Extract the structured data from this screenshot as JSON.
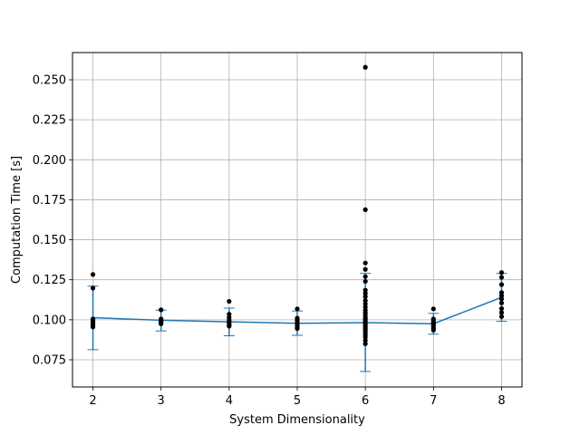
{
  "chart_data": {
    "type": "line",
    "xlabel": "System Dimensionality",
    "ylabel": "Computation Time [s]",
    "xlim": [
      1.7,
      8.3
    ],
    "ylim": [
      0.058,
      0.267
    ],
    "grid": true,
    "x_ticks": [
      "2",
      "3",
      "4",
      "5",
      "6",
      "7",
      "8"
    ],
    "y_ticks": [
      "0.075",
      "0.100",
      "0.125",
      "0.150",
      "0.175",
      "0.200",
      "0.225",
      "0.250"
    ],
    "line_color": "#1f77b4",
    "point_color": "#000000",
    "mean_series": {
      "x": [
        2,
        3,
        4,
        5,
        6,
        7,
        8
      ],
      "y": [
        0.1013,
        0.0997,
        0.0987,
        0.0978,
        0.0982,
        0.0975,
        0.114
      ]
    },
    "error_bars": [
      {
        "x": 2,
        "low": 0.0813,
        "high": 0.121
      },
      {
        "x": 3,
        "low": 0.093,
        "high": 0.106
      },
      {
        "x": 4,
        "low": 0.09,
        "high": 0.1073
      },
      {
        "x": 5,
        "low": 0.0903,
        "high": 0.1055
      },
      {
        "x": 6,
        "low": 0.0677,
        "high": 0.129
      },
      {
        "x": 7,
        "low": 0.091,
        "high": 0.104
      },
      {
        "x": 8,
        "low": 0.099,
        "high": 0.129
      }
    ],
    "samples": [
      {
        "x": 2,
        "y": [
          0.1283,
          0.1198,
          0.1005,
          0.0995,
          0.0985,
          0.0978,
          0.097,
          0.0962,
          0.0955
        ]
      },
      {
        "x": 3,
        "y": [
          0.1062,
          0.1005,
          0.0998,
          0.099,
          0.0982,
          0.0975
        ]
      },
      {
        "x": 4,
        "y": [
          0.1115,
          0.1035,
          0.1015,
          0.0998,
          0.0988,
          0.0978,
          0.0968,
          0.096
        ]
      },
      {
        "x": 5,
        "y": [
          0.1068,
          0.101,
          0.0998,
          0.0985,
          0.0975,
          0.0962,
          0.0952,
          0.0945
        ]
      },
      {
        "x": 6,
        "y": [
          0.2578,
          0.1688,
          0.1355,
          0.1315,
          0.127,
          0.124,
          0.1185,
          0.1165,
          0.1145,
          0.112,
          0.11,
          0.108,
          0.106,
          0.1045,
          0.103,
          0.1015,
          0.1005,
          0.0995,
          0.0985,
          0.0975,
          0.0965,
          0.0955,
          0.0945,
          0.0935,
          0.092,
          0.0905,
          0.089,
          0.087,
          0.085
        ]
      },
      {
        "x": 7,
        "y": [
          0.1068,
          0.1005,
          0.0995,
          0.0985,
          0.0975,
          0.0965,
          0.0955,
          0.0945,
          0.0935
        ]
      },
      {
        "x": 8,
        "y": [
          0.1295,
          0.1265,
          0.122,
          0.117,
          0.115,
          0.113,
          0.1105,
          0.107,
          0.1045,
          0.102
        ]
      }
    ]
  }
}
